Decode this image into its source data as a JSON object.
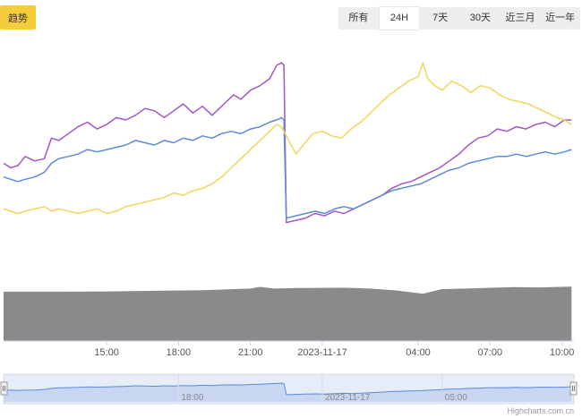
{
  "badge_label": "趋势",
  "range_selector": {
    "options": [
      "所有",
      "24H",
      "7天",
      "30天",
      "近三月",
      "近一年"
    ],
    "selected": "24H"
  },
  "credit": "Highcharts.com.cn",
  "colors": {
    "purple": "#a455c7",
    "blue": "#5b8bd9",
    "yellow": "#f2d55a",
    "volume": "#8a8a8a",
    "navigator_fill": "#c9d6f2",
    "badge": "#f5cc3b"
  },
  "chart_data": {
    "type": "line",
    "title": "",
    "xlabel": "",
    "ylabel": "",
    "x_ticks": [
      {
        "label": "15:00",
        "hour": 0
      },
      {
        "label": "18:00",
        "hour": 3
      },
      {
        "label": "21:00",
        "hour": 6
      },
      {
        "label": "2023-11-17",
        "hour": 9
      },
      {
        "label": "04:00",
        "hour": 13
      },
      {
        "label": "07:00",
        "hour": 16
      },
      {
        "label": "10:00",
        "hour": 19
      }
    ],
    "navigator_ticks": [
      {
        "label": "18:00",
        "hour": 3
      },
      {
        "label": "2023-11-17",
        "hour": 9
      },
      {
        "label": "05:00",
        "hour": 14
      }
    ],
    "x_range_hours": [
      -4.3,
      19.5
    ],
    "y_range": [
      0,
      100
    ],
    "series": [
      {
        "color": "purple",
        "x": [
          -4.3,
          -4.0,
          -3.7,
          -3.4,
          -3.0,
          -2.6,
          -2.3,
          -2.0,
          -1.6,
          -1.2,
          -0.8,
          -0.4,
          0.0,
          0.4,
          0.8,
          1.2,
          1.6,
          2.0,
          2.4,
          2.8,
          3.2,
          3.6,
          4.0,
          4.4,
          4.7,
          5.0,
          5.3,
          5.6,
          6.0,
          6.4,
          6.8,
          7.1,
          7.3,
          7.4,
          7.5,
          7.9,
          8.3,
          8.7,
          9.1,
          9.5,
          9.9,
          10.3,
          10.7,
          11.1,
          11.5,
          11.9,
          12.3,
          12.7,
          13.1,
          13.5,
          13.9,
          14.3,
          14.7,
          15.1,
          15.5,
          15.9,
          16.3,
          16.7,
          17.1,
          17.5,
          17.9,
          18.3,
          18.7,
          19.1,
          19.4
        ],
        "y": [
          52,
          50,
          51,
          55,
          53,
          54,
          63,
          62,
          65,
          68,
          70,
          67,
          69,
          72,
          71,
          73,
          76,
          75,
          72,
          75,
          78,
          74,
          77,
          73,
          76,
          79,
          82,
          80,
          84,
          86,
          89,
          95,
          96,
          95,
          26,
          27,
          28,
          30,
          29,
          31,
          30,
          32,
          34,
          36,
          38,
          41,
          43,
          44,
          46,
          48,
          50,
          53,
          56,
          60,
          63,
          64,
          67,
          66,
          68,
          67,
          69,
          70,
          68,
          71,
          71
        ]
      },
      {
        "color": "blue",
        "x": [
          -4.3,
          -4.0,
          -3.7,
          -3.4,
          -3.0,
          -2.6,
          -2.3,
          -2.0,
          -1.6,
          -1.2,
          -0.8,
          -0.4,
          0.0,
          0.4,
          0.8,
          1.2,
          1.6,
          2.0,
          2.4,
          2.8,
          3.2,
          3.6,
          4.0,
          4.4,
          4.8,
          5.2,
          5.6,
          6.0,
          6.4,
          6.8,
          7.1,
          7.3,
          7.4,
          7.5,
          7.9,
          8.3,
          8.7,
          9.1,
          9.5,
          9.9,
          10.3,
          10.7,
          11.1,
          11.5,
          11.9,
          12.3,
          12.7,
          13.1,
          13.5,
          13.9,
          14.3,
          14.7,
          15.1,
          15.5,
          15.9,
          16.3,
          16.7,
          17.1,
          17.5,
          17.9,
          18.3,
          18.7,
          19.1,
          19.4
        ],
        "y": [
          46,
          45,
          44,
          45,
          46,
          48,
          52,
          54,
          55,
          56,
          58,
          57,
          58,
          59,
          60,
          62,
          61,
          60,
          62,
          61,
          63,
          62,
          64,
          63,
          65,
          66,
          65,
          67,
          68,
          70,
          71,
          72,
          71,
          28,
          29,
          30,
          31,
          30,
          32,
          33,
          32,
          34,
          36,
          38,
          40,
          41,
          42,
          43,
          45,
          47,
          49,
          50,
          52,
          53,
          54,
          55,
          55,
          56,
          55,
          56,
          57,
          56,
          57,
          58
        ]
      },
      {
        "color": "yellow",
        "x": [
          -4.3,
          -4.0,
          -3.7,
          -3.4,
          -3.0,
          -2.6,
          -2.3,
          -2.0,
          -1.6,
          -1.2,
          -0.8,
          -0.4,
          0.0,
          0.4,
          0.8,
          1.2,
          1.6,
          2.0,
          2.4,
          2.8,
          3.2,
          3.6,
          4.0,
          4.4,
          4.8,
          5.2,
          5.6,
          6.0,
          6.4,
          6.8,
          7.1,
          7.3,
          7.6,
          7.9,
          8.2,
          8.6,
          9.0,
          9.4,
          9.8,
          10.2,
          10.6,
          11.0,
          11.4,
          11.8,
          12.2,
          12.6,
          13.0,
          13.2,
          13.4,
          13.7,
          14.0,
          14.4,
          14.8,
          15.2,
          15.6,
          16.0,
          16.4,
          16.8,
          17.2,
          17.6,
          18.0,
          18.4,
          18.8,
          19.1,
          19.4
        ],
        "y": [
          32,
          31,
          30,
          31,
          32,
          33,
          31,
          32,
          31,
          30,
          31,
          32,
          30,
          31,
          33,
          34,
          35,
          36,
          37,
          39,
          38,
          40,
          41,
          43,
          46,
          50,
          54,
          58,
          62,
          66,
          69,
          68,
          62,
          56,
          60,
          65,
          66,
          64,
          63,
          67,
          70,
          74,
          78,
          82,
          85,
          88,
          90,
          96,
          89,
          86,
          84,
          88,
          86,
          83,
          86,
          85,
          82,
          80,
          79,
          78,
          76,
          74,
          72,
          71,
          69
        ]
      }
    ],
    "volume": {
      "color": "volume",
      "x": [
        -4.3,
        -2.0,
        0.0,
        2.0,
        4.0,
        6.0,
        6.4,
        7.0,
        8.0,
        10.0,
        11.0,
        12.0,
        13.2,
        14.0,
        15.0,
        16.0,
        17.0,
        18.0,
        19.4
      ],
      "y": [
        17.5,
        17.5,
        17.6,
        17.8,
        18.0,
        18.6,
        19.2,
        18.6,
        18.8,
        18.9,
        18.6,
        18.0,
        16.8,
        18.4,
        18.6,
        18.9,
        19.1,
        19.0,
        19.3
      ],
      "y_range": [
        0,
        20
      ]
    }
  }
}
